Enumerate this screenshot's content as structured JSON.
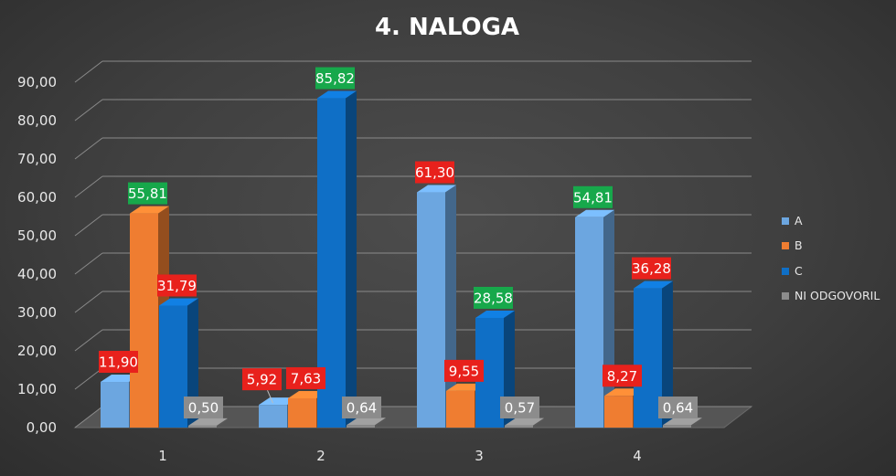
{
  "chart_data": {
    "type": "bar",
    "title": "4. NALOGA",
    "categories": [
      "1",
      "2",
      "3",
      "4"
    ],
    "series": [
      {
        "name": "A",
        "values": [
          11.9,
          5.92,
          61.3,
          54.81
        ],
        "value_labels": [
          "11,90",
          "5,92",
          "61,30",
          "54,81"
        ],
        "color": "#6ca6e0"
      },
      {
        "name": "B",
        "values": [
          55.81,
          7.63,
          9.55,
          8.27
        ],
        "value_labels": [
          "55,81",
          "7,63",
          "9,55",
          "8,27"
        ],
        "color": "#ef7d31"
      },
      {
        "name": "C",
        "values": [
          31.79,
          85.82,
          28.58,
          36.28
        ],
        "value_labels": [
          "31,79",
          "85,82",
          "28,58",
          "36,28"
        ],
        "color": "#0f6fc6"
      },
      {
        "name": "NI ODGOVORIL",
        "values": [
          0.5,
          0.64,
          0.57,
          0.64
        ],
        "value_labels": [
          "0,50",
          "0,64",
          "0,57",
          "0,64"
        ],
        "color": "#8c8c8c"
      }
    ],
    "label_colors": [
      [
        "#e8211c",
        "#e8211c",
        "#e8211c",
        "#17a84b"
      ],
      [
        "#17a84b",
        "#e8211c",
        "#e8211c",
        "#e8211c"
      ],
      [
        "#e8211c",
        "#17a84b",
        "#17a84b",
        "#e8211c"
      ],
      [
        "#8c8c8c",
        "#8c8c8c",
        "#8c8c8c",
        "#8c8c8c"
      ]
    ],
    "yticks": [
      "0,00",
      "10,00",
      "20,00",
      "30,00",
      "40,00",
      "50,00",
      "60,00",
      "70,00",
      "80,00",
      "90,00"
    ],
    "ylim": [
      0,
      90
    ],
    "legend_position": "right",
    "grid": true
  }
}
